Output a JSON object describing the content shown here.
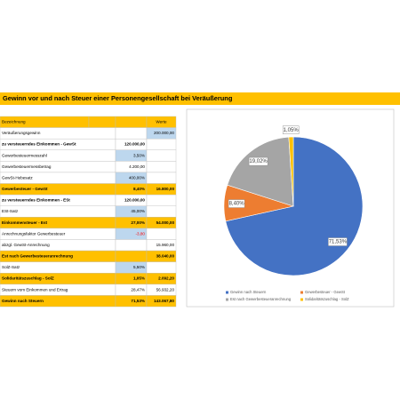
{
  "title": "Gewinn vor und nach Steuer einer Personengesellschaft bei Veräußerung",
  "table": {
    "header": {
      "label": "Bezeichnung",
      "value": "Werte"
    },
    "rows": [
      {
        "label": "Veräußerungsgewinn",
        "value": "200.000,00",
        "input": true
      },
      {
        "label": "zu versteuerndes Einkommen - GewSt",
        "mid": "120.000,00",
        "bold": true
      },
      {
        "label": "Gewerbesteuermesszahl",
        "mid": "3,50%",
        "input": true
      },
      {
        "label": "Gewerbesteuermessbetrag",
        "mid": "4.200,00"
      },
      {
        "label": "GewSt-Hebesatz",
        "mid": "400,00%",
        "input": true
      },
      {
        "label": "Gewerbesteuer - GewSt",
        "mid": "8,40%",
        "value": "16.800,00",
        "sum": true
      },
      {
        "label": "zu versteuerndes Einkommen - ESt",
        "mid": "120.000,00",
        "bold": true
      },
      {
        "label": "ESt-Satz",
        "mid": "45,00%",
        "input": true
      },
      {
        "label": "Einkommensteuer - Est",
        "mid": "27,00%",
        "value": "54.000,00",
        "sum": true
      },
      {
        "label": "Anrechnungsfaktor Gewerbesteuer",
        "mid": "-3,80",
        "input": true
      },
      {
        "label": "abzgl. GewSt-Anrechnung",
        "value": "15.960,00"
      },
      {
        "label": "Est nach Gewerbesteueranrechnung",
        "value": "38.040,00",
        "sum": true
      },
      {
        "label": "SolZ-Satz",
        "mid": "5,50%",
        "input": true
      },
      {
        "label": "Solidaritätszuschlag - SolZ",
        "mid": "1,05%",
        "value": "2.092,20",
        "sum": true
      },
      {
        "label": "Steuern vom Einkommen und Ertrag",
        "mid": "28,47%",
        "value": "56.932,20"
      },
      {
        "label": "Gewinn nach Steuern",
        "mid": "71,53%",
        "value": "143.067,80",
        "sum": true
      }
    ]
  },
  "chart_data": {
    "type": "pie",
    "categories": [
      "Gewinn nach Steuern",
      "Gewerbesteuer - GewSt",
      "Est nach Gewerbesteueranrechnung",
      "Solidaritätszuschlag - SolZ"
    ],
    "values": [
      71.53,
      8.4,
      19.02,
      1.05
    ],
    "value_labels": [
      "71,53%",
      "8,40%",
      "19,02%",
      "1,05%"
    ],
    "colors": [
      "#4472c4",
      "#ed7d31",
      "#a5a5a5",
      "#ffc000"
    ]
  }
}
